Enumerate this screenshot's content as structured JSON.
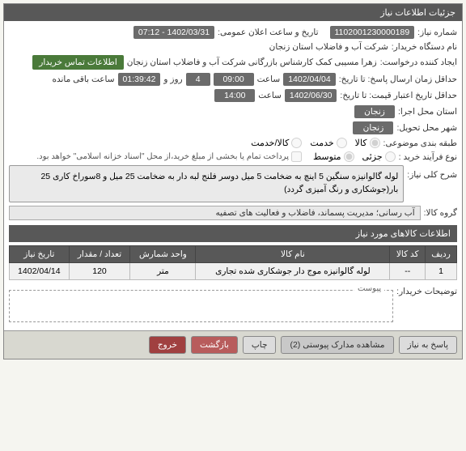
{
  "header": {
    "title": "جزئیات اطلاعات نیاز"
  },
  "fields": {
    "need_number_label": "شماره نیاز:",
    "need_number": "1102001230000189",
    "announce_label": "تاریخ و ساعت اعلان عمومی:",
    "announce_value": "1402/03/31 - 07:12",
    "buyer_org_label": "نام دستگاه خریدار:",
    "buyer_org": "شرکت آب و فاضلاب استان زنجان",
    "creator_label": "ایجاد کننده درخواست:",
    "creator": "زهرا مسیبی کمک کارشناس بازرگانی شرکت آب و فاضلاب استان زنجان",
    "contact_btn": "اطلاعات تماس خریدار",
    "min_send_label": "حداقل زمان ارسال پاسخ: تا تاریخ:",
    "min_send_date": "1402/04/04",
    "time_label": "ساعت",
    "min_send_time": "09:00",
    "days_label": "روز و",
    "days_value": "4",
    "countdown": "01:39:42",
    "remaining": "ساعت باقی مانده",
    "expire_label": "حداقل تاریخ اعتبار قیمت: تا تاریخ:",
    "expire_date": "1402/06/30",
    "expire_time": "14:00",
    "exec_place_label": "استان محل اجرا:",
    "exec_place": "زنجان",
    "deliver_place_label": "شهر محل تحویل:",
    "deliver_place": "زنجان",
    "category_label": "طبقه بندی موضوعی:",
    "cat_goods": "کالا",
    "cat_service": "خدمت",
    "cat_goods_service": "کالا/خدمت",
    "buy_type_label": "نوع فرآیند خرید :",
    "buy_partial": "جزئی",
    "buy_medium": "متوسط",
    "payment_note": "پرداخت تمام یا بخشی از مبلغ خرید،از محل \"اسناد خزانه اسلامی\" خواهد بود.",
    "desc_label": "شرح کلی نیاز:",
    "desc_text": "لوله گالوانیزه سنگین 5 اینچ به ضخامت 5 میل دوسر فلنج لبه دار به ضخامت 25 میل و 8سوراخ کاری 25 بار(جوشکاری و رنگ آمیزی گردد)",
    "group_label": "گروه کالا:",
    "group_value": "آب رسانی؛ مدیریت پسماند، فاضلاب و فعالیت های تصفیه",
    "buyer_notes_label": "توضیحات خریدار:",
    "attach_label": "پیوست"
  },
  "items_header": "اطلاعات کالاهای مورد نیاز",
  "table": {
    "cols": [
      "ردیف",
      "کد کالا",
      "نام کالا",
      "واحد شمارش",
      "تعداد / مقدار",
      "تاریخ نیاز"
    ],
    "rows": [
      [
        "1",
        "--",
        "لوله گالوانیزه موج دار جوشکاری شده تجاری",
        "متر",
        "120",
        "1402/04/14"
      ]
    ]
  },
  "footer": {
    "respond": "پاسخ به نیاز",
    "attachments": "مشاهده مدارک پیوستی (2)",
    "print": "چاپ",
    "back": "بازگشت",
    "exit": "خروج"
  },
  "colors": {
    "header_bg": "#585858",
    "field_bg": "#6b6b6b",
    "green_btn": "#4a7a3a",
    "back_btn": "#b85c5c",
    "exit_btn": "#a04040"
  }
}
